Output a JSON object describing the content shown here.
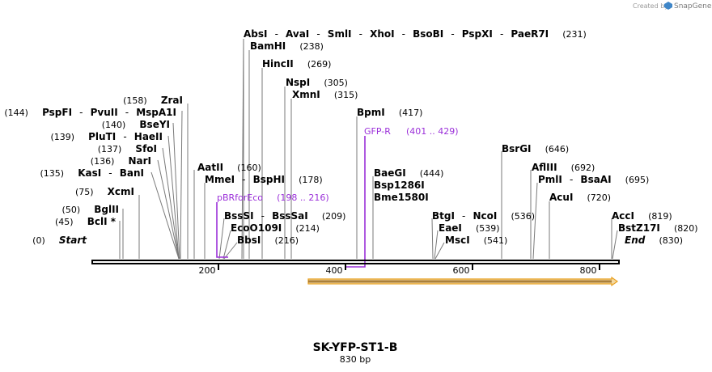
{
  "credit": {
    "created_by": "Created by",
    "brand": "SnapGene"
  },
  "map": {
    "title": "SK-YFP-ST1-B",
    "length_label": "830 bp",
    "ticks": [
      200,
      400,
      600,
      800
    ]
  },
  "sites": [
    {
      "names": [
        "AbsI",
        "AvaI",
        "SmlI",
        "XhoI",
        "BsoBI",
        "PspXI",
        "PaeR7I"
      ],
      "pos": "(231)"
    },
    {
      "names": [
        "BamHI"
      ],
      "pos": "(238)"
    },
    {
      "names": [
        "HincII"
      ],
      "pos": "(269)"
    },
    {
      "names": [
        "NspI"
      ],
      "pos": "(305)"
    },
    {
      "names": [
        "XmnI"
      ],
      "pos": "(315)"
    },
    {
      "names": [
        "BpmI"
      ],
      "pos": "(417)"
    },
    {
      "names": [
        "ZraI"
      ],
      "pos": "(158)"
    },
    {
      "names": [
        "PspFI",
        "PvuII",
        "MspA1I"
      ],
      "pos": "(144)"
    },
    {
      "names": [
        "BseYI"
      ],
      "pos": "(140)"
    },
    {
      "names": [
        "PluTI",
        "HaeII"
      ],
      "pos": "(139)"
    },
    {
      "names": [
        "SfoI"
      ],
      "pos": "(137)"
    },
    {
      "names": [
        "NarI"
      ],
      "pos": "(136)"
    },
    {
      "names": [
        "KasI",
        "BanI"
      ],
      "pos": "(135)"
    },
    {
      "names": [
        "XcmI"
      ],
      "pos": "(75)"
    },
    {
      "names": [
        "BglII"
      ],
      "pos": "(50)"
    },
    {
      "names": [
        "BclI *"
      ],
      "pos": "(45)"
    },
    {
      "names": [
        "AatII"
      ],
      "pos": "(160)"
    },
    {
      "names": [
        "MmeI",
        "BspHI"
      ],
      "pos": "(178)"
    },
    {
      "names": [
        "BssSI",
        "BssSaI"
      ],
      "pos": "(209)"
    },
    {
      "names": [
        "EcoO109I"
      ],
      "pos": "(214)"
    },
    {
      "names": [
        "BbsI"
      ],
      "pos": "(216)"
    },
    {
      "names": [
        "BaeGI",
        "Bsp1286I",
        "Bme1580I"
      ],
      "pos": "(444)"
    },
    {
      "names": [
        "BtgI",
        "NcoI"
      ],
      "pos": "(536)"
    },
    {
      "names": [
        "EaeI"
      ],
      "pos": "(539)"
    },
    {
      "names": [
        "MscI"
      ],
      "pos": "(541)"
    },
    {
      "names": [
        "BsrGI"
      ],
      "pos": "(646)"
    },
    {
      "names": [
        "AflIII"
      ],
      "pos": "(692)"
    },
    {
      "names": [
        "PmlI",
        "BsaAI"
      ],
      "pos": "(695)"
    },
    {
      "names": [
        "AcuI"
      ],
      "pos": "(720)"
    },
    {
      "names": [
        "AccI"
      ],
      "pos": "(819)"
    },
    {
      "names": [
        "BstZ17I"
      ],
      "pos": "(820)"
    }
  ],
  "terminals": [
    {
      "name": "Start",
      "pos": "(0)"
    },
    {
      "name": "End",
      "pos": "(830)"
    }
  ],
  "primers": [
    {
      "name": "pBRforEco",
      "range": "(198 .. 216)"
    },
    {
      "name": "GFP-R",
      "range": "(401 .. 429)"
    }
  ],
  "colors": {
    "primer": "#9b30d9",
    "feature": "#e8a020",
    "feature_fill": "#f5d9a0"
  }
}
